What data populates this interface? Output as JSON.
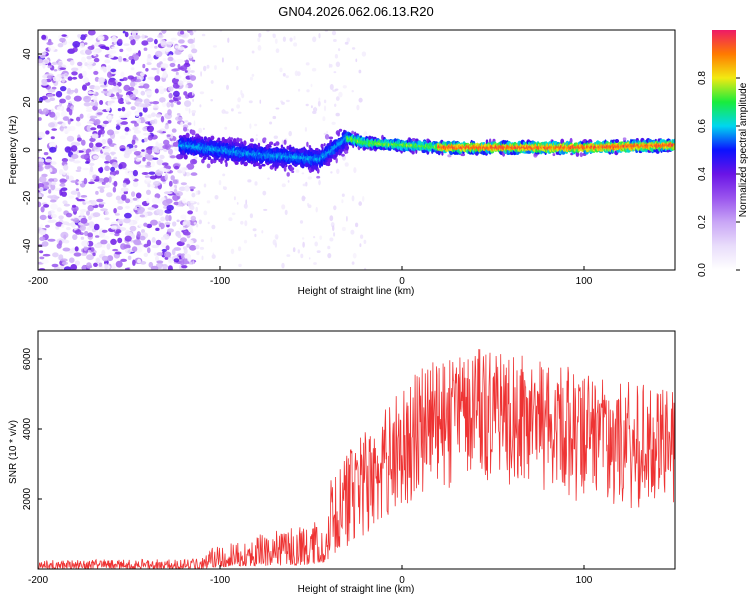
{
  "title": "GN04.2026.062.06.13.R20",
  "colors": {
    "line": "#ee3333",
    "spectrum_stops": [
      "#ffffff",
      "#e9ddfb",
      "#c9a6f6",
      "#9a55ee",
      "#6a14e6",
      "#0b12ff",
      "#00d7ef",
      "#19ec3c",
      "#f2ea12",
      "#ff7a00",
      "#ee1a66"
    ]
  },
  "chart_data": [
    {
      "type": "heatmap",
      "name": "spectrogram",
      "xlabel": "Height of straight line (km)",
      "ylabel": "Frequency (Hz)",
      "xlim": [
        -200,
        150
      ],
      "ylim": [
        -50,
        50
      ],
      "xticks": [
        -200,
        -100,
        0,
        100
      ],
      "yticks": [
        -40,
        -20,
        0,
        20,
        40
      ],
      "noise_region_x": [
        -200,
        -120
      ],
      "signal_track": [
        {
          "x": -122,
          "y": 2
        },
        {
          "x": -100,
          "y": 0
        },
        {
          "x": -80,
          "y": -2
        },
        {
          "x": -60,
          "y": -3
        },
        {
          "x": -45,
          "y": -4
        },
        {
          "x": -30,
          "y": 5
        },
        {
          "x": -20,
          "y": 3
        },
        {
          "x": 0,
          "y": 2
        },
        {
          "x": 25,
          "y": 1
        },
        {
          "x": 60,
          "y": 1
        },
        {
          "x": 100,
          "y": 1
        },
        {
          "x": 150,
          "y": 2
        }
      ],
      "colorbar": {
        "label": "Normalized spectral amplitude",
        "range": [
          0,
          1
        ],
        "ticks": [
          "0.0",
          "0.2",
          "0.4",
          "0.6",
          "0.8"
        ]
      }
    },
    {
      "type": "line",
      "name": "snr",
      "xlabel": "Height of straight line (km)",
      "ylabel": "SNR (10 * v/v)",
      "xlim": [
        -200,
        150
      ],
      "ylim": [
        0,
        6800
      ],
      "xticks": [
        -200,
        -100,
        0,
        100
      ],
      "yticks": [
        2000,
        4000,
        6000
      ],
      "envelope": [
        {
          "x": -200,
          "low": 0,
          "high": 250
        },
        {
          "x": -110,
          "low": 0,
          "high": 300
        },
        {
          "x": -105,
          "low": 50,
          "high": 600
        },
        {
          "x": -80,
          "low": 80,
          "high": 1000
        },
        {
          "x": -60,
          "low": 100,
          "high": 1200
        },
        {
          "x": -45,
          "low": 150,
          "high": 1400
        },
        {
          "x": -38,
          "low": 300,
          "high": 2800
        },
        {
          "x": -30,
          "low": 600,
          "high": 3300
        },
        {
          "x": -15,
          "low": 1200,
          "high": 4300
        },
        {
          "x": 0,
          "low": 1800,
          "high": 5200
        },
        {
          "x": 15,
          "low": 2200,
          "high": 6000
        },
        {
          "x": 40,
          "low": 2400,
          "high": 6300
        },
        {
          "x": 60,
          "low": 2300,
          "high": 6200
        },
        {
          "x": 90,
          "low": 2000,
          "high": 5800
        },
        {
          "x": 120,
          "low": 1700,
          "high": 5400
        },
        {
          "x": 150,
          "low": 1700,
          "high": 5100
        }
      ]
    }
  ]
}
